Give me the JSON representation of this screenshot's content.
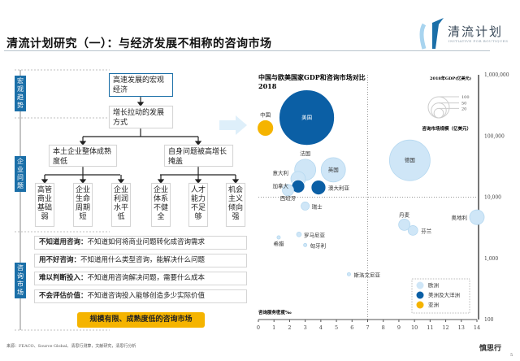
{
  "header": {
    "title": "清流计划研究（一）：与经济发展不相称的咨询市场",
    "logo_text": "清流计划",
    "logo_sub": "INITIATIVE FOR BOUTIQUES"
  },
  "left": {
    "labels": [
      "宏观趋势",
      "企业问题",
      "咨询市场"
    ],
    "macro_box": "高速发展的宏观经济",
    "growth_box": "增长拉动的发展方式",
    "branch_left": "本土企业整体成熟度低",
    "branch_right": "自身问题被高增长掩盖",
    "leaves": [
      "高管商业基础弱",
      "企业生命周期短",
      "企业利润水平低",
      "企业体系不健全",
      "人才能力不足够",
      "机会主义倾向强"
    ],
    "rows": [
      {
        "key": "不知道用咨询：",
        "text": "不知道如何将商业问题转化成咨询需求"
      },
      {
        "key": "用不好咨询：",
        "text": "不知道用什么类型咨询，能解决什么问题"
      },
      {
        "key": "难以判断投入：",
        "text": "不知道用咨询解决问题，需要什么成本"
      },
      {
        "key": "不会评估价值：",
        "text": "不知道咨询投入能够创造多少实际价值"
      }
    ],
    "conclusion": "规模有限、成熟度低的咨询市场"
  },
  "chart_data": {
    "type": "scatter",
    "title": "中国与欧美国家GDP和咨询市场对比",
    "subtitle": "2018",
    "xlabel": "咨询服务密度‰",
    "ylabel": "咨询市场规模（亿美元）",
    "size_label": "2018年GDP(亿美元)",
    "size_legend": [
      100,
      50,
      20
    ],
    "xlim": [
      0,
      14
    ],
    "ylim": [
      100,
      1000000
    ],
    "yscale": "log",
    "xticks": [
      "0",
      "1",
      "2",
      "3",
      "4",
      "5",
      "6",
      "7",
      "8",
      "9",
      "10",
      "11",
      "12",
      "13",
      "14"
    ],
    "yticks": [
      "100",
      "1,000",
      "10,000",
      "100,000",
      "1,000,000"
    ],
    "reference_lines": {
      "x": 7,
      "y": 10000
    },
    "legend": [
      {
        "name": "欧洲",
        "color": "#cfe6f7"
      },
      {
        "name": "美洲及大洋洲",
        "color": "#0b5fa5"
      },
      {
        "name": "亚洲",
        "color": "#f5b400"
      }
    ],
    "legend_position": "bottom-right",
    "points": [
      {
        "label": "中国",
        "x": 0.45,
        "y": 135000,
        "size": 59,
        "region": 2
      },
      {
        "label": "美国",
        "x": 3.1,
        "y": 200000,
        "size": 684,
        "region": 1
      },
      {
        "label": "法国",
        "x": 3.0,
        "y": 28000,
        "size": 100,
        "region": 0
      },
      {
        "label": "意大利",
        "x": 2.55,
        "y": 20000,
        "size": 48,
        "region": 0
      },
      {
        "label": "加拿大",
        "x": 2.55,
        "y": 15000,
        "size": 38,
        "region": 1
      },
      {
        "label": "西班牙",
        "x": 1.9,
        "y": 13000,
        "size": 29,
        "region": 0
      },
      {
        "label": "英国",
        "x": 4.8,
        "y": 28000,
        "size": 133,
        "region": 0
      },
      {
        "label": "澳大利亚",
        "x": 3.85,
        "y": 14400,
        "size": 48,
        "region": 1
      },
      {
        "label": "德国",
        "x": 9.7,
        "y": 40000,
        "size": 370,
        "region": 0
      },
      {
        "label": "瑞士",
        "x": 3.0,
        "y": 7150,
        "size": 15,
        "region": 0
      },
      {
        "label": "丹麦",
        "x": 9.35,
        "y": 3550,
        "size": 29,
        "region": 0
      },
      {
        "label": "芬兰",
        "x": 9.9,
        "y": 2860,
        "size": 21,
        "region": 0
      },
      {
        "label": "奥地利",
        "x": 14,
        "y": 4700,
        "size": 48,
        "region": 0
      },
      {
        "label": "罗马尼亚",
        "x": 2.6,
        "y": 2460,
        "size": 5,
        "region": 0
      },
      {
        "label": "希腊",
        "x": 1.3,
        "y": 2200,
        "size": 2.5,
        "region": 0
      },
      {
        "label": "匈牙利",
        "x": 3.0,
        "y": 1650,
        "size": 2.5,
        "region": 0
      },
      {
        "label": "斯洛文尼亚",
        "x": 5.8,
        "y": 550,
        "size": 2.5,
        "region": 0
      }
    ]
  },
  "footer": {
    "source": "来源：FEACO、Source Global、清思行测算，文献研究，清思行分析",
    "brand": "慎思行",
    "page": "5"
  }
}
